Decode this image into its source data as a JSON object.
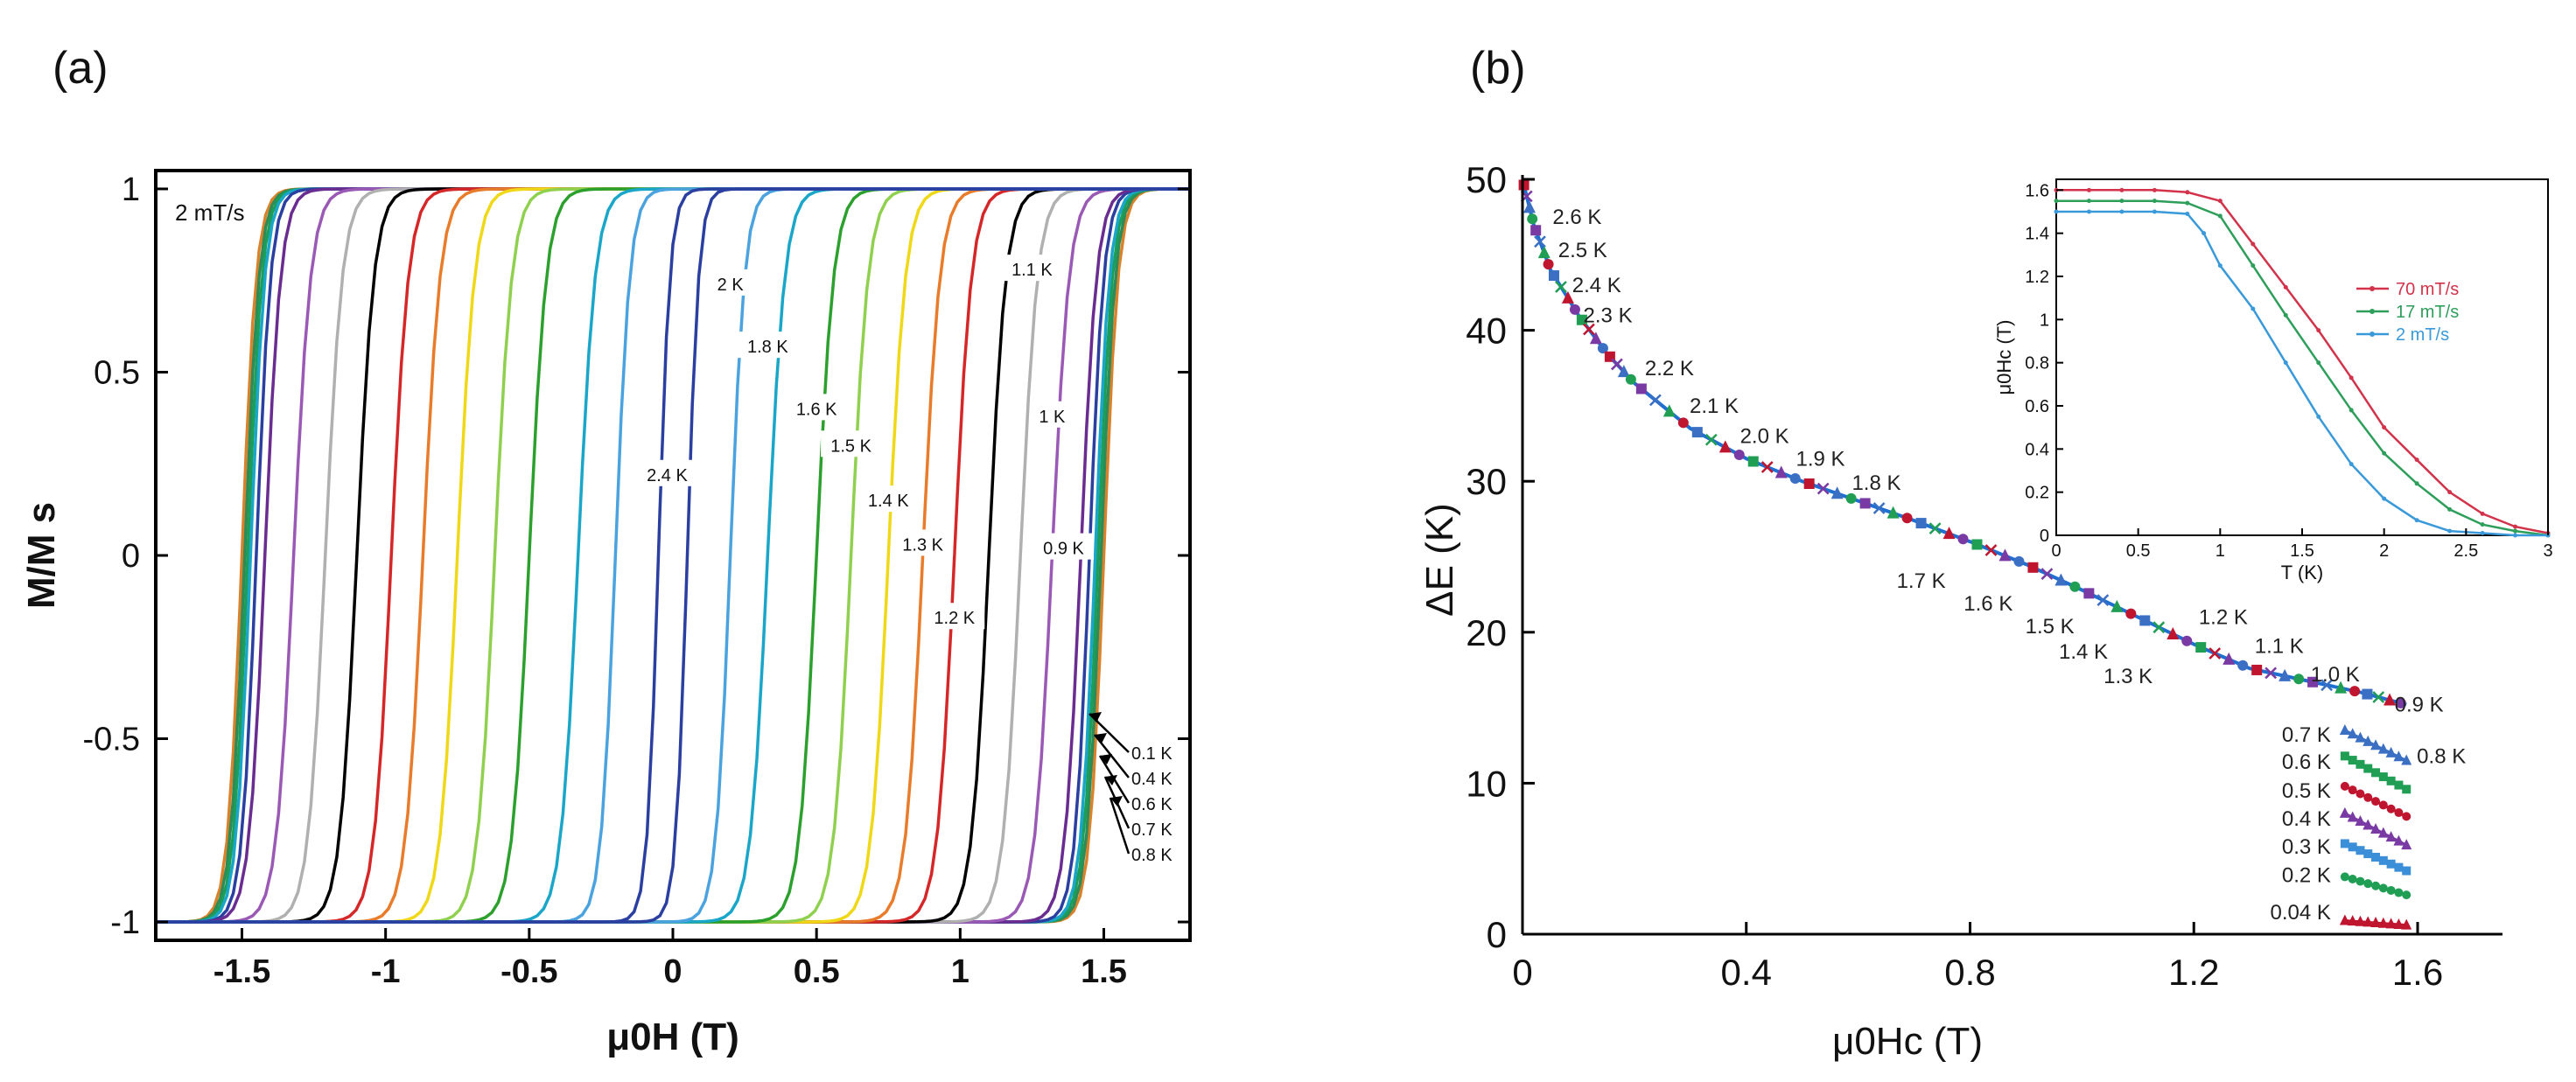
{
  "chart_data": [
    {
      "panel": "(a)",
      "type": "line",
      "title": "",
      "annotation": "2 mT/s",
      "xlabel": "μ0H (T)",
      "ylabel": "M/M s",
      "xlim": [
        -1.8,
        1.8
      ],
      "ylim": [
        -1.05,
        1.05
      ],
      "xticks": [
        -1.5,
        -1,
        -0.5,
        0,
        0.5,
        1,
        1.5
      ],
      "xtick_labels": [
        "-1.5",
        "-1",
        "-0.5",
        "0",
        "0.5",
        "1",
        "1.5"
      ],
      "yticks": [
        -1,
        -0.5,
        0,
        0.5,
        1
      ],
      "ytick_labels": [
        "-1",
        "-0.5",
        "0",
        "0.5",
        "1"
      ],
      "description": "Hysteresis loops M/Ms vs μ0H; ascending branches with coercive field Hc for each temperature, descending branches mirrored at -Hc",
      "series": [
        {
          "name": "0.04 K",
          "color": "#d9822b",
          "hc": 1.5,
          "w": 0.05
        },
        {
          "name": "0.1 K",
          "color": "#2e8b57",
          "hc": 1.49,
          "w": 0.05
        },
        {
          "name": "0.2 K",
          "color": "#1a9e58",
          "hc": 1.48,
          "w": 0.05
        },
        {
          "name": "0.4 K",
          "color": "#1aa6c9",
          "hc": 1.47,
          "w": 0.05
        },
        {
          "name": "0.6 K",
          "color": "#2a3fa0",
          "hc": 1.45,
          "w": 0.05
        },
        {
          "name": "0.8 K",
          "color": "#6a2c91",
          "hc": 1.42,
          "w": 0.055
        },
        {
          "name": "0.9 K",
          "color": "#9b59b6",
          "hc": 1.32,
          "w": 0.06
        },
        {
          "name": "1 K",
          "color": "#b0b0b0",
          "hc": 1.21,
          "w": 0.06
        },
        {
          "name": "1.1 K",
          "color": "#000000",
          "hc": 1.1,
          "w": 0.06
        },
        {
          "name": "1.2 K",
          "color": "#d62728",
          "hc": 0.98,
          "w": 0.06
        },
        {
          "name": "1.3 K",
          "color": "#e87c2a",
          "hc": 0.87,
          "w": 0.06
        },
        {
          "name": "1.4 K",
          "color": "#f0d817",
          "hc": 0.75,
          "w": 0.06
        },
        {
          "name": "1.5 K",
          "color": "#8fd14f",
          "hc": 0.62,
          "w": 0.06
        },
        {
          "name": "1.6 K",
          "color": "#2ca02c",
          "hc": 0.5,
          "w": 0.06
        },
        {
          "name": "1.8 K",
          "color": "#1aa6c9",
          "hc": 0.33,
          "w": 0.06
        },
        {
          "name": "2 K",
          "color": "#4aa3df",
          "hc": 0.2,
          "w": 0.05
        },
        {
          "name": "2.4 K",
          "color": "#2a3fa0",
          "hc": 0.05,
          "w": 0.04
        }
      ],
      "curve_labels": [
        {
          "text": "2 K",
          "x": 0.2,
          "y": 0.74
        },
        {
          "text": "1.8 K",
          "x": 0.33,
          "y": 0.57
        },
        {
          "text": "1.6 K",
          "x": 0.5,
          "y": 0.4
        },
        {
          "text": "1.5 K",
          "x": 0.62,
          "y": 0.3
        },
        {
          "text": "1.4 K",
          "x": 0.75,
          "y": 0.15
        },
        {
          "text": "1.3 K",
          "x": 0.87,
          "y": 0.03
        },
        {
          "text": "1.2 K",
          "x": 0.98,
          "y": -0.17
        },
        {
          "text": "2.4 K",
          "x": -0.02,
          "y": 0.22
        },
        {
          "text": "1.1 K",
          "x": 1.25,
          "y": 0.78
        },
        {
          "text": "1 K",
          "x": 1.32,
          "y": 0.38
        },
        {
          "text": "0.9 K",
          "x": 1.36,
          "y": 0.02
        }
      ],
      "arrow_labels": [
        "0.1 K",
        "0.4 K",
        "0.6 K",
        "0.7 K",
        "0.8 K"
      ]
    },
    {
      "panel": "(b)",
      "type": "scatter",
      "title": "",
      "xlabel": "μ0Hc (T)",
      "ylabel": "ΔE (K)",
      "xlim": [
        0,
        1.75
      ],
      "ylim": [
        0,
        50
      ],
      "xticks": [
        0,
        0.4,
        0.8,
        1.2,
        1.6
      ],
      "xtick_labels": [
        "0",
        "0.4",
        "0.8",
        "1.2",
        "1.6"
      ],
      "yticks": [
        0,
        10,
        20,
        30,
        40,
        50
      ],
      "ytick_labels": [
        "0",
        "10",
        "20",
        "30",
        "40",
        "50"
      ],
      "main_curve": {
        "x": [
          0.0,
          0.02,
          0.05,
          0.1,
          0.15,
          0.2,
          0.3,
          0.4,
          0.5,
          0.6,
          0.7,
          0.8,
          0.9,
          1.0,
          1.1,
          1.2,
          1.3,
          1.4,
          1.5,
          1.58
        ],
        "y": [
          50,
          47,
          44,
          41,
          38.5,
          36.5,
          33.5,
          31.5,
          30,
          28.7,
          27.4,
          26,
          24.5,
          22.8,
          21,
          19.2,
          17.6,
          16.8,
          16,
          15.2
        ]
      },
      "temperature_labels_upper": [
        {
          "text": "2.6 K",
          "x": 0.035,
          "y": 47.5
        },
        {
          "text": "2.5 K",
          "x": 0.045,
          "y": 45.3
        },
        {
          "text": "2.4 K",
          "x": 0.07,
          "y": 43.0
        },
        {
          "text": "2.3 K",
          "x": 0.09,
          "y": 41.0
        },
        {
          "text": "2.2 K",
          "x": 0.2,
          "y": 37.5
        },
        {
          "text": "2.1 K",
          "x": 0.28,
          "y": 35.0
        },
        {
          "text": "2.0 K",
          "x": 0.37,
          "y": 33.0
        },
        {
          "text": "1.9 K",
          "x": 0.47,
          "y": 31.5
        },
        {
          "text": "1.8 K",
          "x": 0.57,
          "y": 29.9
        }
      ],
      "temperature_labels_lower": [
        {
          "text": "1.7 K",
          "x": 0.7,
          "y": 23.4
        },
        {
          "text": "1.6 K",
          "x": 0.82,
          "y": 21.9
        },
        {
          "text": "1.5 K",
          "x": 0.93,
          "y": 20.4
        },
        {
          "text": "1.4 K",
          "x": 0.99,
          "y": 18.7
        },
        {
          "text": "1.3 K",
          "x": 1.07,
          "y": 17.1
        },
        {
          "text": "1.2 K",
          "x": 1.24,
          "y": 21.0
        },
        {
          "text": "1.1 K",
          "x": 1.34,
          "y": 19.1
        },
        {
          "text": "1.0 K",
          "x": 1.44,
          "y": 17.2
        },
        {
          "text": "0.9 K",
          "x": 1.59,
          "y": 15.2
        },
        {
          "text": "0.8 K",
          "x": 1.63,
          "y": 11.8
        }
      ],
      "low_temperature_series": [
        {
          "name": "0.7 K",
          "color": "#3a6fc4",
          "y0": 13.5,
          "y1": 11.5
        },
        {
          "name": "0.6 K",
          "color": "#1f9e54",
          "y0": 11.8,
          "y1": 9.6
        },
        {
          "name": "0.5 K",
          "color": "#c0152f",
          "y0": 9.8,
          "y1": 7.8
        },
        {
          "name": "0.4 K",
          "color": "#7a3aa3",
          "y0": 8.0,
          "y1": 5.9
        },
        {
          "name": "0.3 K",
          "color": "#3a8fd8",
          "y0": 6.0,
          "y1": 4.2
        },
        {
          "name": "0.2 K",
          "color": "#1f9e54",
          "y0": 3.8,
          "y1": 2.6
        },
        {
          "name": "0.04 K",
          "color": "#c0152f",
          "y0": 0.9,
          "y1": 0.6
        }
      ],
      "inset": {
        "type": "line",
        "xlabel": "T (K)",
        "ylabel": "μ0Hc (T)",
        "xlim": [
          0,
          3
        ],
        "ylim": [
          0,
          1.65
        ],
        "xticks": [
          0,
          0.5,
          1,
          1.5,
          2,
          2.5,
          3
        ],
        "xtick_labels": [
          "0",
          "0.5",
          "1",
          "1.5",
          "2",
          "2.5",
          "3"
        ],
        "yticks": [
          0,
          0.2,
          0.4,
          0.6,
          0.8,
          1,
          1.2,
          1.4,
          1.6
        ],
        "ytick_labels": [
          "0",
          "0.2",
          "0.4",
          "0.6",
          "0.8",
          "1",
          "1.2",
          "1.4",
          "1.6"
        ],
        "legend_position": "top-right",
        "series": [
          {
            "name": "70 mT/s",
            "color": "#d2334a",
            "x": [
              0,
              0.2,
              0.4,
              0.6,
              0.8,
              1.0,
              1.2,
              1.4,
              1.6,
              1.8,
              2.0,
              2.2,
              2.4,
              2.6,
              2.8,
              3.0
            ],
            "y": [
              1.6,
              1.6,
              1.6,
              1.6,
              1.59,
              1.55,
              1.35,
              1.15,
              0.95,
              0.73,
              0.5,
              0.35,
              0.2,
              0.1,
              0.04,
              0.01
            ]
          },
          {
            "name": "17 mT/s",
            "color": "#2e9e5b",
            "x": [
              0,
              0.2,
              0.4,
              0.6,
              0.8,
              1.0,
              1.2,
              1.4,
              1.6,
              1.8,
              2.0,
              2.2,
              2.4,
              2.6,
              2.8,
              3.0
            ],
            "y": [
              1.55,
              1.55,
              1.55,
              1.55,
              1.54,
              1.48,
              1.25,
              1.02,
              0.8,
              0.58,
              0.38,
              0.24,
              0.12,
              0.05,
              0.02,
              0.0
            ]
          },
          {
            "name": "2 mT/s",
            "color": "#3a9ad9",
            "x": [
              0,
              0.2,
              0.4,
              0.6,
              0.8,
              0.9,
              1.0,
              1.2,
              1.4,
              1.6,
              1.8,
              2.0,
              2.2,
              2.4,
              2.6,
              2.8,
              3.0
            ],
            "y": [
              1.5,
              1.5,
              1.5,
              1.5,
              1.49,
              1.4,
              1.25,
              1.05,
              0.8,
              0.55,
              0.33,
              0.17,
              0.07,
              0.02,
              0.01,
              0.0,
              0.0
            ]
          }
        ]
      }
    }
  ]
}
